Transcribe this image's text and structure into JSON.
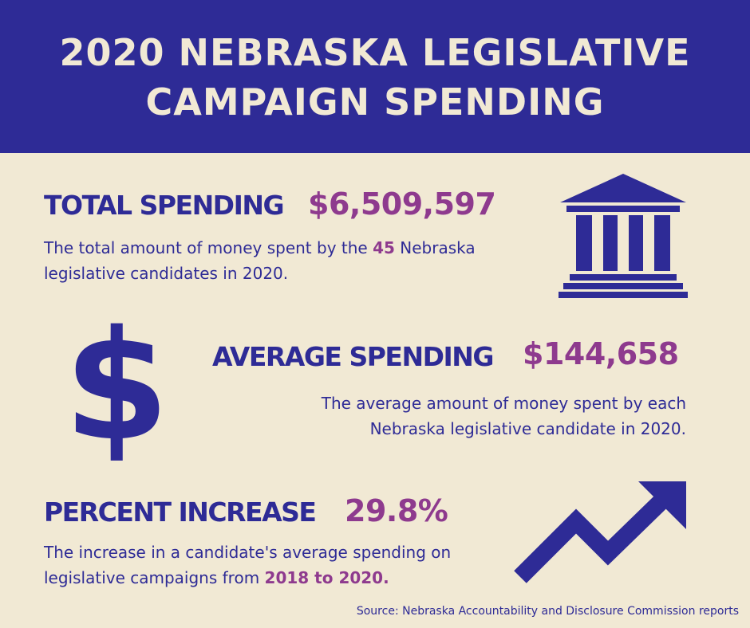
{
  "title": {
    "line1": "2020 NEBRASKA LEGISLATIVE",
    "line2": "CAMPAIGN SPENDING"
  },
  "total": {
    "label": "TOTAL SPENDING",
    "value": "$6,509,597",
    "desc_part1": "The total amount of money spent by the ",
    "desc_highlight": "45",
    "desc_part2": " Nebraska",
    "desc_line2": "legislative candidates in 2020."
  },
  "average": {
    "label": "AVERAGE SPENDING",
    "value": "$144,658",
    "desc_line1": "The average amount of money spent by each",
    "desc_line2": "Nebraska legislative candidate in 2020."
  },
  "increase": {
    "label": "PERCENT INCREASE",
    "value": "29.8%",
    "desc_line1": "The increase in a candidate's average spending on",
    "desc_part2": "legislative campaigns from ",
    "desc_highlight": "2018 to 2020."
  },
  "dollar_symbol": "$",
  "icons": {
    "building": "government-building-icon",
    "dollar": "dollar-sign-icon",
    "trend": "trending-up-arrow-icon"
  },
  "colors": {
    "navy": "#2e2b96",
    "purple": "#8e3a8e",
    "cream": "#f1e9d4"
  },
  "source": "Source: Nebraska Accountability and Disclosure Commission reports"
}
